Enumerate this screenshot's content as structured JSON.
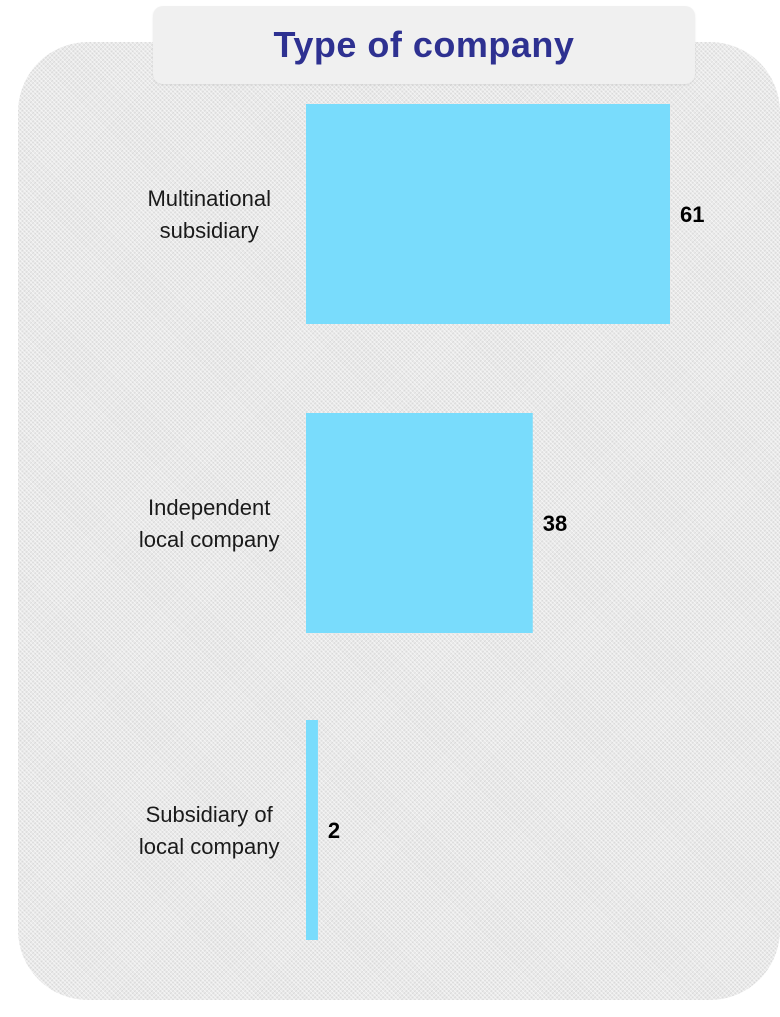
{
  "chart_data": {
    "type": "bar",
    "orientation": "horizontal",
    "title": "Type of company",
    "categories": [
      [
        "Multinational",
        "subsidiary"
      ],
      [
        "Independent",
        "local company"
      ],
      [
        "Subsidiary of",
        "local company"
      ]
    ],
    "values": [
      61,
      38,
      2
    ],
    "data_labels": [
      "61",
      "38",
      "2"
    ],
    "xlim": [
      0,
      61
    ],
    "grid": false,
    "legend": "none",
    "colors": {
      "bar": "#79dcfc",
      "title": "#2e3191"
    }
  }
}
